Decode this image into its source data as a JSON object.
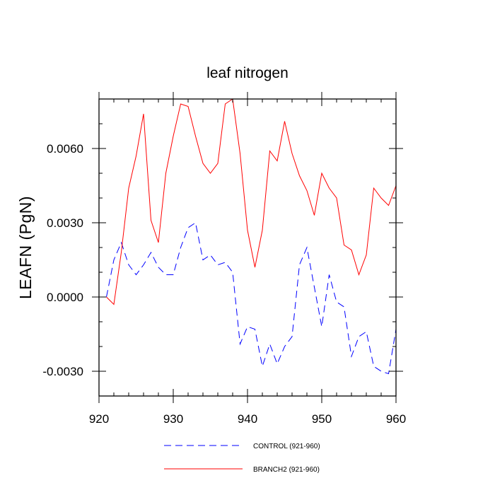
{
  "chart_data": {
    "type": "line",
    "title": "leaf nitrogen",
    "xlabel": "",
    "ylabel": "LEAFN  (PgN)",
    "xlim": [
      921,
      960
    ],
    "ylim": [
      -0.004,
      0.008
    ],
    "x_ticks": [
      920,
      930,
      940,
      950,
      960
    ],
    "x_tick_labels": [
      "920",
      "930",
      "940",
      "950",
      "960"
    ],
    "y_ticks": [
      -0.003,
      0.0,
      0.003,
      0.006
    ],
    "y_tick_labels": [
      "-0.0030",
      "0.0000",
      "0.0030",
      "0.0060"
    ],
    "x": [
      921,
      922,
      923,
      924,
      925,
      926,
      927,
      928,
      929,
      930,
      931,
      932,
      933,
      934,
      935,
      936,
      937,
      938,
      939,
      940,
      941,
      942,
      943,
      944,
      945,
      946,
      947,
      948,
      949,
      950,
      951,
      952,
      953,
      954,
      955,
      956,
      957,
      958,
      959,
      960
    ],
    "series": [
      {
        "name": "CONTROL (921-960)",
        "color": "#0000ff",
        "style": "dashed",
        "values": [
          0.0,
          0.0015,
          0.0022,
          0.0013,
          0.0009,
          0.0013,
          0.0018,
          0.0012,
          0.0009,
          0.0009,
          0.002,
          0.0028,
          0.003,
          0.0015,
          0.0017,
          0.0013,
          0.0014,
          0.001,
          -0.0019,
          -0.0012,
          -0.0013,
          -0.0028,
          -0.0019,
          -0.0027,
          -0.002,
          -0.0016,
          0.0013,
          0.002,
          0.0004,
          -0.0012,
          0.0009,
          -0.0002,
          -0.0004,
          -0.0024,
          -0.0016,
          -0.0014,
          -0.0028,
          -0.003,
          -0.0031,
          -0.0013
        ]
      },
      {
        "name": "BRANCH2 (921-960)",
        "color": "#ff0000",
        "style": "solid",
        "values": [
          0.0,
          -0.0003,
          0.0018,
          0.0044,
          0.0057,
          0.0074,
          0.0031,
          0.0022,
          0.005,
          0.0065,
          0.0078,
          0.0077,
          0.0065,
          0.0054,
          0.005,
          0.0054,
          0.0078,
          0.008,
          0.0058,
          0.0027,
          0.0012,
          0.0027,
          0.0059,
          0.0055,
          0.0071,
          0.0058,
          0.0049,
          0.0043,
          0.0033,
          0.005,
          0.0044,
          0.004,
          0.0021,
          0.0019,
          0.0009,
          0.0017,
          0.0044,
          0.004,
          0.0037,
          0.0045
        ]
      }
    ],
    "legend": {
      "placement": "bottom"
    }
  }
}
